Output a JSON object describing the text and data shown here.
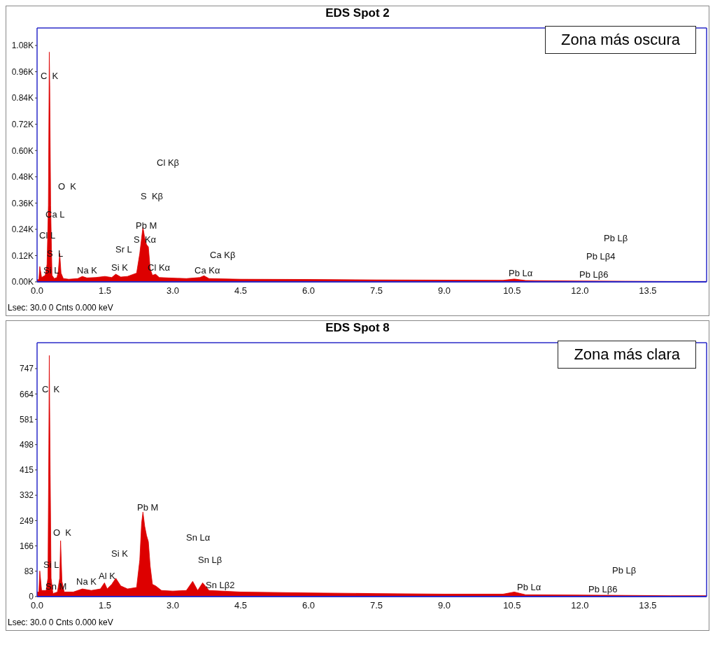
{
  "chart_data": [
    {
      "type": "area",
      "title": "EDS Spot 2",
      "x": [
        0,
        0.04,
        0.06,
        0.1,
        0.18,
        0.22,
        0.25,
        0.27,
        0.28,
        0.3,
        0.33,
        0.38,
        0.44,
        0.47,
        0.5,
        0.53,
        0.58,
        0.7,
        0.9,
        1.0,
        1.1,
        1.3,
        1.5,
        1.65,
        1.74,
        1.85,
        2.0,
        2.2,
        2.27,
        2.31,
        2.34,
        2.38,
        2.42,
        2.46,
        2.5,
        2.55,
        2.62,
        2.7,
        2.9,
        3.3,
        3.6,
        3.69,
        3.8,
        4.5,
        6.0,
        7.5,
        9.0,
        10.3,
        10.55,
        10.8,
        12.0,
        13.0,
        14.0,
        14.8
      ],
      "series": [
        {
          "color": "#dd0000",
          "values": [
            0.01,
            0.01,
            0.07,
            0.02,
            0.03,
            0.08,
            0.35,
            1.05,
            0.9,
            0.35,
            0.03,
            0.015,
            0.02,
            0.05,
            0.13,
            0.04,
            0.015,
            0.012,
            0.015,
            0.025,
            0.018,
            0.02,
            0.025,
            0.02,
            0.035,
            0.022,
            0.025,
            0.04,
            0.13,
            0.2,
            0.25,
            0.2,
            0.17,
            0.16,
            0.06,
            0.03,
            0.035,
            0.02,
            0.018,
            0.015,
            0.02,
            0.028,
            0.015,
            0.012,
            0.011,
            0.009,
            0.008,
            0.007,
            0.013,
            0.006,
            0.004,
            0.003,
            0.002,
            0.002
          ]
        }
      ],
      "xlim": [
        0,
        14.8
      ],
      "xticks": [
        {
          "value": 0,
          "label": "0.0"
        },
        1.5,
        {
          "value": 3,
          "label": "3.0"
        },
        4.5,
        {
          "value": 6,
          "label": "6.0"
        },
        7.5,
        {
          "value": 9,
          "label": "9.0"
        },
        10.5,
        {
          "value": 12,
          "label": "12.0"
        },
        13.5
      ],
      "ylim": [
        0,
        1.16
      ],
      "yticks": [
        {
          "value": 0,
          "label": "0.00K"
        },
        {
          "value": 0.12,
          "label": "0.12K"
        },
        {
          "value": 0.24,
          "label": "0.24K"
        },
        {
          "value": 0.36,
          "label": "0.36K"
        },
        {
          "value": 0.48,
          "label": "0.48K"
        },
        {
          "value": 0.6,
          "label": "0.60K"
        },
        {
          "value": 0.72,
          "label": "0.72K"
        },
        {
          "value": 0.84,
          "label": "0.84K"
        },
        {
          "value": 0.96,
          "label": "0.96K"
        },
        {
          "value": 1.08,
          "label": "1.08K"
        }
      ],
      "annotations": [
        "Zona más oscura",
        "Lsec: 30.0 0 Cnts 0.000 keV",
        "C  K",
        "O  K",
        "Ca L",
        "Cl L",
        "S  L",
        "Si L",
        "Na K",
        "Si K",
        "Sr L",
        "S  Kα",
        "Pb M",
        "Cl Kα",
        "S  Kβ",
        "Cl Kβ",
        "Ca Kβ",
        "Ca Kα",
        "Pb Lα",
        "Pb Lβ6",
        "Pb Lβ4",
        "Pb Lβ"
      ]
    },
    {
      "type": "area",
      "title": "EDS Spot 8",
      "x": [
        0,
        0.04,
        0.06,
        0.1,
        0.2,
        0.24,
        0.26,
        0.27,
        0.29,
        0.31,
        0.35,
        0.45,
        0.5,
        0.52,
        0.55,
        0.6,
        0.8,
        1.0,
        1.2,
        1.4,
        1.49,
        1.55,
        1.65,
        1.74,
        1.85,
        2.0,
        2.2,
        2.27,
        2.31,
        2.34,
        2.38,
        2.42,
        2.46,
        2.5,
        2.55,
        2.62,
        2.75,
        3.0,
        3.3,
        3.44,
        3.55,
        3.66,
        3.8,
        4.5,
        6.0,
        7.5,
        9.0,
        10.3,
        10.55,
        10.8,
        12.0,
        13.0,
        14.0,
        14.8
      ],
      "series": [
        {
          "color": "#dd0000",
          "values": [
            15,
            15,
            84,
            20,
            20,
            60,
            500,
            790,
            400,
            60,
            10,
            15,
            60,
            183,
            50,
            15,
            15,
            25,
            20,
            25,
            45,
            25,
            40,
            60,
            35,
            25,
            30,
            120,
            240,
            277,
            230,
            200,
            180,
            100,
            40,
            35,
            20,
            18,
            20,
            50,
            20,
            45,
            20,
            15,
            12,
            10,
            8,
            8,
            15,
            6,
            5,
            4,
            3,
            3
          ]
        }
      ],
      "xlim": [
        0,
        14.8
      ],
      "xticks": [
        {
          "value": 0,
          "label": "0.0"
        },
        1.5,
        {
          "value": 3,
          "label": "3.0"
        },
        4.5,
        {
          "value": 6,
          "label": "6.0"
        },
        7.5,
        {
          "value": 9,
          "label": "9.0"
        },
        10.5,
        {
          "value": 12,
          "label": "12.0"
        },
        13.5
      ],
      "ylim": [
        0,
        832
      ],
      "yticks": [
        0,
        83,
        166,
        249,
        332,
        415,
        498,
        581,
        664,
        747
      ],
      "annotations": [
        "Zona más clara",
        "Lsec: 30.0 0 Cnts 0.000 keV",
        "C  K",
        "O  K",
        "Si L",
        "Sn M",
        "Na K",
        "Al K",
        "Si K",
        "Pb M",
        "Sn Lα",
        "Sn Lβ",
        "Sn Lβ2",
        "Pb Lα",
        "Pb Lβ6",
        "Pb Lβ"
      ]
    }
  ]
}
